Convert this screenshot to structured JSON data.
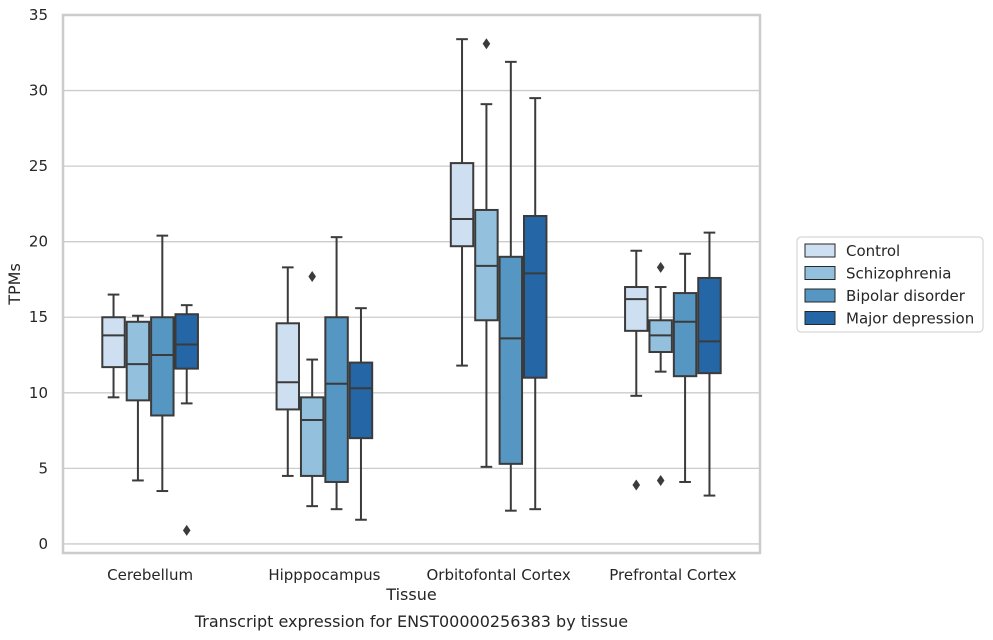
{
  "chart_data": {
    "type": "box",
    "title": "Transcript expression for ENST00000256383 by tissue",
    "xlabel": "Tissue",
    "ylabel": "TPMs",
    "ylim": [
      -0.6,
      35
    ],
    "yticks": [
      0,
      5,
      10,
      15,
      20,
      25,
      30,
      35
    ],
    "grid": true,
    "legend_position": "right",
    "categories": [
      "Cerebellum",
      "Hipppocampus",
      "Orbitofontal Cortex",
      "Prefrontal Cortex"
    ],
    "series": [
      {
        "name": "Control",
        "color": "#cddff0",
        "boxes": [
          {
            "whisker_low": 9.7,
            "q1": 11.7,
            "median": 13.8,
            "q3": 15.0,
            "whisker_high": 16.5,
            "outliers": []
          },
          {
            "whisker_low": 4.5,
            "q1": 8.9,
            "median": 10.7,
            "q3": 14.6,
            "whisker_high": 18.3,
            "outliers": []
          },
          {
            "whisker_low": 11.8,
            "q1": 19.7,
            "median": 21.5,
            "q3": 25.2,
            "whisker_high": 33.4,
            "outliers": []
          },
          {
            "whisker_low": 9.8,
            "q1": 14.1,
            "median": 16.2,
            "q3": 17.0,
            "whisker_high": 19.4,
            "outliers": [
              3.9
            ]
          }
        ]
      },
      {
        "name": "Schizophrenia",
        "color": "#93c0dc",
        "boxes": [
          {
            "whisker_low": 4.2,
            "q1": 9.5,
            "median": 11.9,
            "q3": 14.7,
            "whisker_high": 15.1,
            "outliers": []
          },
          {
            "whisker_low": 2.5,
            "q1": 4.5,
            "median": 8.2,
            "q3": 9.7,
            "whisker_high": 12.2,
            "outliers": [
              17.7
            ]
          },
          {
            "whisker_low": 5.1,
            "q1": 14.8,
            "median": 18.4,
            "q3": 22.1,
            "whisker_high": 29.1,
            "outliers": [
              33.1
            ]
          },
          {
            "whisker_low": 11.4,
            "q1": 12.7,
            "median": 13.8,
            "q3": 14.8,
            "whisker_high": 17.0,
            "outliers": [
              18.3,
              4.2
            ]
          }
        ]
      },
      {
        "name": "Bipolar disorder",
        "color": "#5596c2",
        "boxes": [
          {
            "whisker_low": 3.5,
            "q1": 8.5,
            "median": 12.5,
            "q3": 15.0,
            "whisker_high": 20.4,
            "outliers": []
          },
          {
            "whisker_low": 2.3,
            "q1": 4.1,
            "median": 10.6,
            "q3": 15.0,
            "whisker_high": 20.3,
            "outliers": []
          },
          {
            "whisker_low": 2.2,
            "q1": 5.3,
            "median": 13.6,
            "q3": 19.0,
            "whisker_high": 31.9,
            "outliers": []
          },
          {
            "whisker_low": 4.1,
            "q1": 11.1,
            "median": 14.7,
            "q3": 16.6,
            "whisker_high": 19.2,
            "outliers": []
          }
        ]
      },
      {
        "name": "Major depression",
        "color": "#2566a6",
        "boxes": [
          {
            "whisker_low": 9.3,
            "q1": 11.6,
            "median": 13.2,
            "q3": 15.2,
            "whisker_high": 15.8,
            "outliers": [
              0.9
            ]
          },
          {
            "whisker_low": 1.6,
            "q1": 7.0,
            "median": 10.3,
            "q3": 12.0,
            "whisker_high": 15.6,
            "outliers": []
          },
          {
            "whisker_low": 2.3,
            "q1": 11.0,
            "median": 17.9,
            "q3": 21.7,
            "whisker_high": 29.5,
            "outliers": []
          },
          {
            "whisker_low": 3.2,
            "q1": 11.3,
            "median": 13.4,
            "q3": 17.6,
            "whisker_high": 20.6,
            "outliers": []
          }
        ]
      }
    ]
  }
}
